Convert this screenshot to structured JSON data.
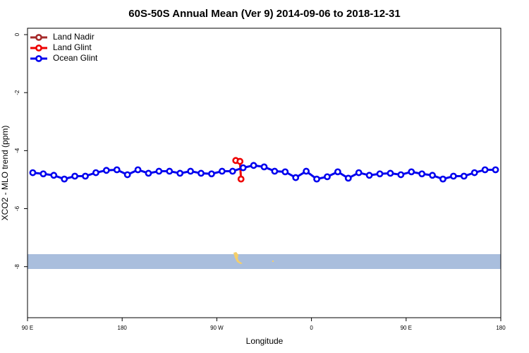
{
  "chart_data": {
    "type": "line",
    "title": "60S-50S Annual Mean (Ver 9)   2014-09-06 to 2018-12-31",
    "x_label": "Longitude",
    "y_label": "XCO2 - MLO trend (ppm)",
    "xlim": [
      90,
      540
    ],
    "xticks": [
      {
        "value": 90,
        "label": "90 E"
      },
      {
        "value": 180,
        "label": "180"
      },
      {
        "value": 270,
        "label": "90 W"
      },
      {
        "value": 360,
        "label": "0"
      },
      {
        "value": 450,
        "label": "90 E"
      },
      {
        "value": 540,
        "label": "180"
      }
    ],
    "ylim": [
      -9.76,
      0.22
    ],
    "yticks": [
      0,
      -2,
      -4,
      -6,
      -8
    ],
    "legend": "top-left",
    "series": [
      {
        "name": "Land Nadir",
        "color": "#a52a2a",
        "x": [],
        "values": []
      },
      {
        "name": "Land Glint",
        "color": "#ee0000",
        "x": [
          288,
          292,
          293
        ],
        "values": [
          -4.34,
          -4.37,
          -4.98
        ]
      },
      {
        "name": "Ocean Glint",
        "color": "#0000ee",
        "x": [
          95,
          105,
          115,
          125,
          135,
          145,
          155,
          165,
          175,
          185,
          195,
          205,
          215,
          225,
          235,
          245,
          255,
          265,
          275,
          285,
          295,
          305,
          315,
          325,
          335,
          345,
          355,
          365,
          375,
          385,
          395,
          405,
          415,
          425,
          435,
          445,
          455,
          465,
          475,
          485,
          495,
          505,
          515,
          525,
          535
        ],
        "values": [
          -4.76,
          -4.8,
          -4.85,
          -4.98,
          -4.88,
          -4.88,
          -4.76,
          -4.68,
          -4.66,
          -4.83,
          -4.66,
          -4.78,
          -4.71,
          -4.71,
          -4.78,
          -4.71,
          -4.78,
          -4.8,
          -4.71,
          -4.71,
          -4.59,
          -4.51,
          -4.56,
          -4.71,
          -4.73,
          -4.93,
          -4.71,
          -4.98,
          -4.9,
          -4.73,
          -4.95,
          -4.76,
          -4.85,
          -4.8,
          -4.78,
          -4.83,
          -4.73,
          -4.8,
          -4.85,
          -4.98,
          -4.88,
          -4.88,
          -4.76,
          -4.66,
          -4.66
        ]
      }
    ]
  }
}
